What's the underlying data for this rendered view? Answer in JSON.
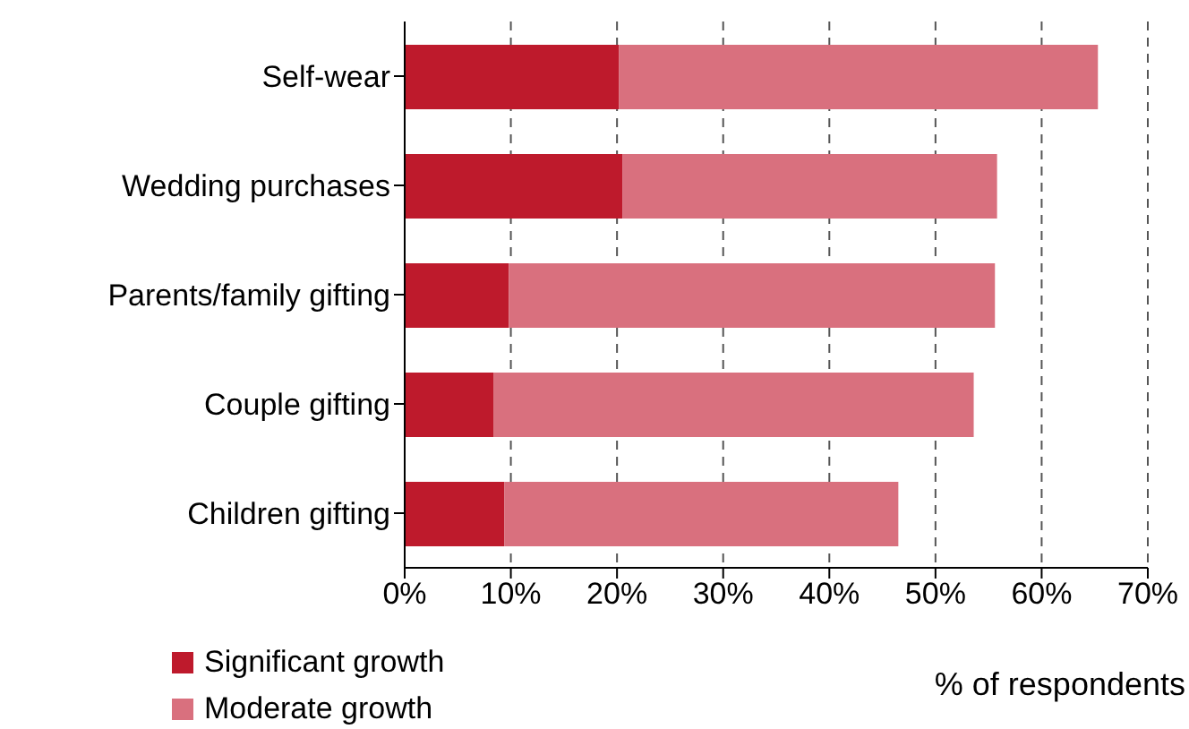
{
  "chart_data": {
    "type": "bar",
    "orientation": "horizontal",
    "stacked": true,
    "categories": [
      "Self-wear",
      "Wedding purchases",
      "Parents/family gifting",
      "Couple gifting",
      "Children gifting"
    ],
    "series": [
      {
        "name": "Significant growth",
        "color": "#be1a2c",
        "values": [
          20.2,
          20.5,
          9.8,
          8.4,
          9.4
        ]
      },
      {
        "name": "Moderate growth",
        "color": "#d9707e",
        "values": [
          45.1,
          35.3,
          45.8,
          45.2,
          37.1
        ]
      }
    ],
    "xlim": [
      0,
      70
    ],
    "xticks": [
      {
        "value": 0,
        "label": "0%"
      },
      {
        "value": 10,
        "label": "10%"
      },
      {
        "value": 20,
        "label": "20%"
      },
      {
        "value": 30,
        "label": "30%"
      },
      {
        "value": 40,
        "label": "40%"
      },
      {
        "value": 50,
        "label": "50%"
      },
      {
        "value": 60,
        "label": "60%"
      },
      {
        "value": 70,
        "label": "70%"
      }
    ],
    "xlabel": "% of respondents",
    "grid": "x",
    "legend": "bottom left"
  }
}
